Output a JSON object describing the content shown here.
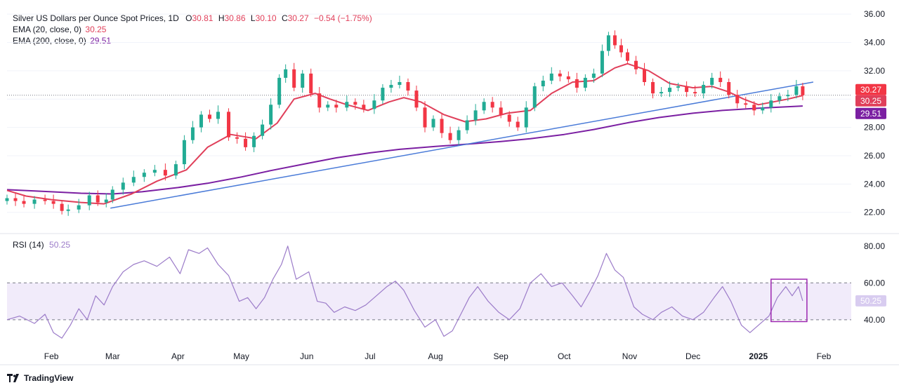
{
  "header": {
    "title": "Silver US Dollars per Ounce Spot Prices, 1D",
    "ohlc": [
      {
        "label": "O",
        "value": "30.81"
      },
      {
        "label": "H",
        "value": "30.86"
      },
      {
        "label": "L",
        "value": "30.10"
      },
      {
        "label": "C",
        "value": "30.27"
      }
    ],
    "change": "−0.54 (−1.75%)",
    "ema20_label": "EMA (20, close, 0)",
    "ema20_value": "30.25",
    "ema200_label": "EMA (200, close, 0)",
    "ema200_value": "29.51",
    "rsi_label": "RSI (14)",
    "rsi_value": "50.25"
  },
  "footer": {
    "brand": "TradingView"
  },
  "colors": {
    "up": "#22ab94",
    "down": "#f23645",
    "ema20": "#e03f5a",
    "ema200": "#7b1fa2",
    "trend": "#4a7bd8",
    "rsi": "#9c7cc9",
    "rsi_band": "#f1ebfa",
    "box": "#9c27b0",
    "grid": "#f0f3fa"
  },
  "chart_data": [
    {
      "type": "candlestick",
      "title": "Silver US Dollars per Ounce Spot Prices, 1D",
      "ylim": [
        20.5,
        36.5
      ],
      "y_ticks": [
        "22.00",
        "24.00",
        "26.00",
        "28.00",
        "30.00",
        "32.00",
        "34.00",
        "36.00"
      ],
      "x_ticks": [
        "Feb",
        "Mar",
        "Apr",
        "May",
        "Jun",
        "Jul",
        "Aug",
        "Sep",
        "Oct",
        "Nov",
        "Dec",
        "2025",
        "Feb"
      ],
      "x_range": [
        "2024-01-11",
        "2025-02-14"
      ],
      "last_close": 30.27,
      "price_labels": [
        "30.27",
        "30.25",
        "29.51"
      ],
      "series": [
        {
          "name": "EMA (20, close, 0)",
          "points": [
            [
              "2024-01-11",
              23.55
            ],
            [
              "2024-01-20",
              23.15
            ],
            [
              "2024-02-01",
              22.9
            ],
            [
              "2024-02-15",
              22.7
            ],
            [
              "2024-02-26",
              22.6
            ],
            [
              "2024-03-10",
              23.3
            ],
            [
              "2024-03-22",
              24.2
            ],
            [
              "2024-04-05",
              25.0
            ],
            [
              "2024-04-15",
              26.6
            ],
            [
              "2024-04-26",
              27.5
            ],
            [
              "2024-05-08",
              27.2
            ],
            [
              "2024-05-18",
              28.3
            ],
            [
              "2024-05-26",
              30.0
            ],
            [
              "2024-06-05",
              30.4
            ],
            [
              "2024-06-12",
              30.0
            ],
            [
              "2024-06-20",
              29.6
            ],
            [
              "2024-06-30",
              29.2
            ],
            [
              "2024-07-10",
              29.8
            ],
            [
              "2024-07-17",
              30.1
            ],
            [
              "2024-07-25",
              29.8
            ],
            [
              "2024-08-05",
              28.9
            ],
            [
              "2024-08-15",
              28.4
            ],
            [
              "2024-08-25",
              28.6
            ],
            [
              "2024-09-04",
              29.0
            ],
            [
              "2024-09-15",
              29.2
            ],
            [
              "2024-09-25",
              30.4
            ],
            [
              "2024-10-05",
              31.2
            ],
            [
              "2024-10-15",
              31.3
            ],
            [
              "2024-10-25",
              32.2
            ],
            [
              "2024-10-31",
              32.5
            ],
            [
              "2024-11-10",
              32.0
            ],
            [
              "2024-11-20",
              31.1
            ],
            [
              "2024-12-01",
              30.8
            ],
            [
              "2024-12-10",
              30.9
            ],
            [
              "2024-12-18",
              30.5
            ],
            [
              "2024-12-25",
              30.0
            ],
            [
              "2025-01-01",
              29.6
            ],
            [
              "2025-01-08",
              29.8
            ],
            [
              "2025-01-15",
              30.0
            ],
            [
              "2025-01-22",
              30.25
            ]
          ]
        },
        {
          "name": "EMA (200, close, 0)",
          "points": [
            [
              "2024-01-11",
              23.6
            ],
            [
              "2024-02-01",
              23.45
            ],
            [
              "2024-02-15",
              23.35
            ],
            [
              "2024-03-01",
              23.3
            ],
            [
              "2024-03-15",
              23.45
            ],
            [
              "2024-04-01",
              23.75
            ],
            [
              "2024-04-15",
              24.05
            ],
            [
              "2024-05-01",
              24.5
            ],
            [
              "2024-05-15",
              24.95
            ],
            [
              "2024-06-01",
              25.45
            ],
            [
              "2024-06-15",
              25.85
            ],
            [
              "2024-07-01",
              26.2
            ],
            [
              "2024-07-15",
              26.45
            ],
            [
              "2024-08-01",
              26.65
            ],
            [
              "2024-08-15",
              26.8
            ],
            [
              "2024-09-01",
              27.0
            ],
            [
              "2024-09-15",
              27.2
            ],
            [
              "2024-10-01",
              27.5
            ],
            [
              "2024-10-15",
              27.85
            ],
            [
              "2024-11-01",
              28.35
            ],
            [
              "2024-11-15",
              28.7
            ],
            [
              "2024-12-01",
              29.0
            ],
            [
              "2024-12-15",
              29.2
            ],
            [
              "2025-01-01",
              29.35
            ],
            [
              "2025-01-22",
              29.51
            ]
          ]
        },
        {
          "name": "trendline",
          "points": [
            [
              "2024-02-29",
              22.3
            ],
            [
              "2025-01-27",
              31.2
            ]
          ]
        }
      ],
      "candles": [
        [
          "2024-01-11",
          23.0
        ],
        [
          "2024-01-15",
          22.8
        ],
        [
          "2024-01-19",
          22.6
        ],
        [
          "2024-01-24",
          22.9
        ],
        [
          "2024-01-29",
          22.8
        ],
        [
          "2024-02-02",
          22.6
        ],
        [
          "2024-02-06",
          22.1
        ],
        [
          "2024-02-09",
          22.2
        ],
        [
          "2024-02-14",
          22.5
        ],
        [
          "2024-02-19",
          23.2
        ],
        [
          "2024-02-23",
          22.7
        ],
        [
          "2024-02-27",
          22.9
        ],
        [
          "2024-03-01",
          23.6
        ],
        [
          "2024-03-06",
          24.1
        ],
        [
          "2024-03-11",
          24.5
        ],
        [
          "2024-03-16",
          24.8
        ],
        [
          "2024-03-21",
          25.0
        ],
        [
          "2024-03-26",
          24.6
        ],
        [
          "2024-03-31",
          25.4
        ],
        [
          "2024-04-04",
          27.1
        ],
        [
          "2024-04-08",
          28.0
        ],
        [
          "2024-04-12",
          28.9
        ],
        [
          "2024-04-16",
          28.6
        ],
        [
          "2024-04-20",
          29.1
        ],
        [
          "2024-04-25",
          27.3
        ],
        [
          "2024-04-29",
          27.2
        ],
        [
          "2024-05-03",
          26.6
        ],
        [
          "2024-05-07",
          27.4
        ],
        [
          "2024-05-11",
          28.2
        ],
        [
          "2024-05-15",
          29.6
        ],
        [
          "2024-05-19",
          31.5
        ],
        [
          "2024-05-22",
          32.1
        ],
        [
          "2024-05-26",
          30.8
        ],
        [
          "2024-05-30",
          31.8
        ],
        [
          "2024-06-03",
          30.4
        ],
        [
          "2024-06-07",
          29.4
        ],
        [
          "2024-06-11",
          29.6
        ],
        [
          "2024-06-15",
          29.4
        ],
        [
          "2024-06-20",
          29.8
        ],
        [
          "2024-06-24",
          29.6
        ],
        [
          "2024-06-28",
          29.3
        ],
        [
          "2024-07-03",
          29.9
        ],
        [
          "2024-07-07",
          30.8
        ],
        [
          "2024-07-11",
          31.0
        ],
        [
          "2024-07-15",
          31.2
        ],
        [
          "2024-07-19",
          30.6
        ],
        [
          "2024-07-23",
          29.4
        ],
        [
          "2024-07-27",
          28.0
        ],
        [
          "2024-07-31",
          28.6
        ],
        [
          "2024-08-04",
          27.6
        ],
        [
          "2024-08-08",
          27.1
        ],
        [
          "2024-08-12",
          27.8
        ],
        [
          "2024-08-16",
          28.5
        ],
        [
          "2024-08-20",
          29.2
        ],
        [
          "2024-08-24",
          29.8
        ],
        [
          "2024-08-28",
          29.4
        ],
        [
          "2024-09-01",
          28.9
        ],
        [
          "2024-09-05",
          28.4
        ],
        [
          "2024-09-09",
          28.0
        ],
        [
          "2024-09-13",
          29.4
        ],
        [
          "2024-09-17",
          30.9
        ],
        [
          "2024-09-21",
          31.3
        ],
        [
          "2024-09-25",
          31.8
        ],
        [
          "2024-09-29",
          31.6
        ],
        [
          "2024-10-03",
          31.4
        ],
        [
          "2024-10-07",
          30.8
        ],
        [
          "2024-10-11",
          31.5
        ],
        [
          "2024-10-15",
          31.8
        ],
        [
          "2024-10-19",
          33.4
        ],
        [
          "2024-10-22",
          34.5
        ],
        [
          "2024-10-25",
          33.8
        ],
        [
          "2024-10-28",
          33.3
        ],
        [
          "2024-10-31",
          32.7
        ],
        [
          "2024-11-04",
          32.1
        ],
        [
          "2024-11-08",
          31.2
        ],
        [
          "2024-11-12",
          30.4
        ],
        [
          "2024-11-16",
          30.5
        ],
        [
          "2024-11-20",
          30.8
        ],
        [
          "2024-11-24",
          30.9
        ],
        [
          "2024-11-28",
          30.5
        ],
        [
          "2024-12-02",
          30.4
        ],
        [
          "2024-12-06",
          31.0
        ],
        [
          "2024-12-10",
          31.5
        ],
        [
          "2024-12-14",
          31.2
        ],
        [
          "2024-12-18",
          30.3
        ],
        [
          "2024-12-22",
          29.7
        ],
        [
          "2024-12-26",
          29.6
        ],
        [
          "2024-12-30",
          29.2
        ],
        [
          "2025-01-03",
          29.4
        ],
        [
          "2025-01-07",
          29.9
        ],
        [
          "2025-01-11",
          30.2
        ],
        [
          "2025-01-15",
          30.3
        ],
        [
          "2025-01-19",
          30.9
        ],
        [
          "2025-01-22",
          30.27
        ]
      ]
    },
    {
      "type": "line",
      "title": "RSI (14)",
      "ylim": [
        27,
        86
      ],
      "y_ticks": [
        "40.00",
        "60.00",
        "80.00"
      ],
      "band": [
        40,
        60
      ],
      "last_value": 50.25,
      "highlight_box": {
        "x": [
          "2025-01-07",
          "2025-01-24"
        ],
        "y": [
          39,
          59
        ]
      },
      "series": [
        {
          "name": "RSI (14)",
          "points": [
            [
              "2024-01-11",
              40
            ],
            [
              "2024-01-17",
              42
            ],
            [
              "2024-01-24",
              38
            ],
            [
              "2024-01-29",
              43
            ],
            [
              "2024-02-02",
              33
            ],
            [
              "2024-02-06",
              30
            ],
            [
              "2024-02-10",
              37
            ],
            [
              "2024-02-14",
              46
            ],
            [
              "2024-02-18",
              40
            ],
            [
              "2024-02-22",
              53
            ],
            [
              "2024-02-26",
              48
            ],
            [
              "2024-03-01",
              58
            ],
            [
              "2024-03-06",
              66
            ],
            [
              "2024-03-11",
              70
            ],
            [
              "2024-03-16",
              72
            ],
            [
              "2024-03-22",
              69
            ],
            [
              "2024-03-28",
              74
            ],
            [
              "2024-04-02",
              65
            ],
            [
              "2024-04-06",
              78
            ],
            [
              "2024-04-11",
              76
            ],
            [
              "2024-04-15",
              79
            ],
            [
              "2024-04-20",
              70
            ],
            [
              "2024-04-25",
              64
            ],
            [
              "2024-04-30",
              50
            ],
            [
              "2024-05-04",
              52
            ],
            [
              "2024-05-08",
              46
            ],
            [
              "2024-05-12",
              52
            ],
            [
              "2024-05-16",
              62
            ],
            [
              "2024-05-20",
              70
            ],
            [
              "2024-05-23",
              80
            ],
            [
              "2024-05-27",
              62
            ],
            [
              "2024-06-02",
              66
            ],
            [
              "2024-06-06",
              50
            ],
            [
              "2024-06-10",
              49
            ],
            [
              "2024-06-14",
              44
            ],
            [
              "2024-06-19",
              47
            ],
            [
              "2024-06-24",
              45
            ],
            [
              "2024-06-29",
              48
            ],
            [
              "2024-07-04",
              53
            ],
            [
              "2024-07-09",
              58
            ],
            [
              "2024-07-13",
              61
            ],
            [
              "2024-07-17",
              56
            ],
            [
              "2024-07-22",
              45
            ],
            [
              "2024-07-27",
              36
            ],
            [
              "2024-08-01",
              40
            ],
            [
              "2024-08-05",
              31
            ],
            [
              "2024-08-09",
              34
            ],
            [
              "2024-08-13",
              43
            ],
            [
              "2024-08-17",
              52
            ],
            [
              "2024-08-21",
              58
            ],
            [
              "2024-08-26",
              50
            ],
            [
              "2024-08-31",
              44
            ],
            [
              "2024-09-05",
              40
            ],
            [
              "2024-09-10",
              46
            ],
            [
              "2024-09-15",
              60
            ],
            [
              "2024-09-20",
              65
            ],
            [
              "2024-09-25",
              58
            ],
            [
              "2024-09-30",
              60
            ],
            [
              "2024-10-05",
              53
            ],
            [
              "2024-10-09",
              47
            ],
            [
              "2024-10-13",
              55
            ],
            [
              "2024-10-17",
              64
            ],
            [
              "2024-10-21",
              76
            ],
            [
              "2024-10-25",
              67
            ],
            [
              "2024-10-29",
              63
            ],
            [
              "2024-11-03",
              47
            ],
            [
              "2024-11-07",
              43
            ],
            [
              "2024-11-12",
              40
            ],
            [
              "2024-11-16",
              44
            ],
            [
              "2024-11-21",
              47
            ],
            [
              "2024-11-26",
              42
            ],
            [
              "2024-12-01",
              40
            ],
            [
              "2024-12-06",
              44
            ],
            [
              "2024-12-11",
              52
            ],
            [
              "2024-12-15",
              58
            ],
            [
              "2024-12-19",
              50
            ],
            [
              "2024-12-24",
              37
            ],
            [
              "2024-12-28",
              33
            ],
            [
              "2025-01-02",
              38
            ],
            [
              "2025-01-06",
              42
            ],
            [
              "2025-01-10",
              52
            ],
            [
              "2025-01-14",
              58
            ],
            [
              "2025-01-17",
              53
            ],
            [
              "2025-01-20",
              58
            ],
            [
              "2025-01-22",
              50.25
            ]
          ]
        }
      ]
    }
  ]
}
